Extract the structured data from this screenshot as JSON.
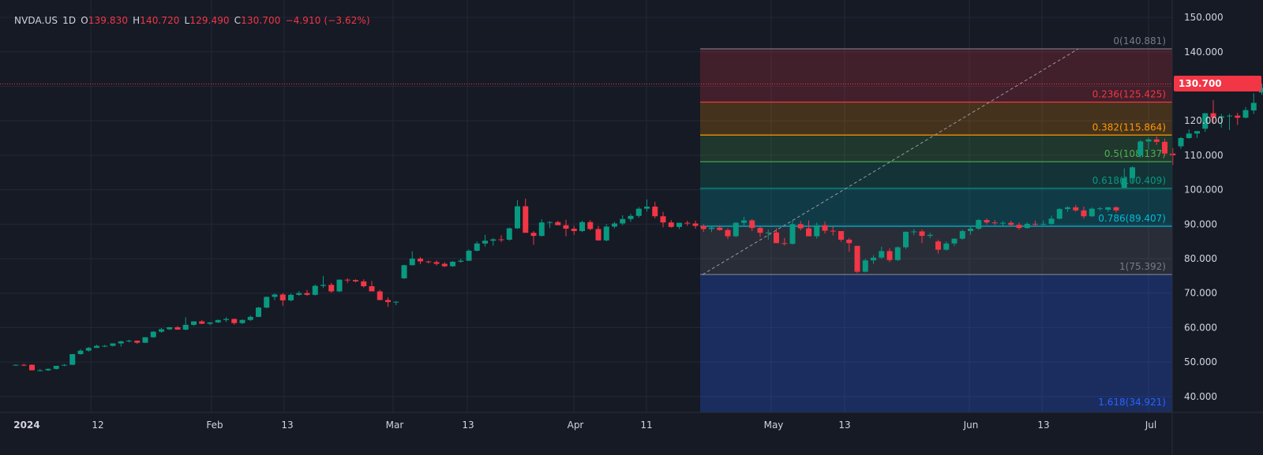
{
  "legend": {
    "symbol": "NVDA.US",
    "interval": "1D",
    "o_label": "O",
    "o": "139.830",
    "h_label": "H",
    "h": "140.720",
    "l_label": "L",
    "l": "129.490",
    "c_label": "C",
    "c": "130.700",
    "change": "−4.910 (−3.62%)"
  },
  "last_price": "130.700",
  "colors": {
    "background": "#161a25",
    "up": "#089981",
    "down": "#f23645",
    "grid": "#232838",
    "text": "#d1d4dc"
  },
  "chart_data": {
    "type": "candlestick",
    "y_axis": {
      "min": 35,
      "max": 150,
      "ticks": [
        "40.000",
        "50.000",
        "60.000",
        "70.000",
        "80.000",
        "90.000",
        "100.000",
        "110.000",
        "120.000",
        "130.000",
        "140.000",
        "150.000"
      ]
    },
    "x_axis_labels": [
      "2024",
      "12",
      "Feb",
      "13",
      "Mar",
      "13",
      "Apr",
      "11",
      "May",
      "13",
      "Jun",
      "13",
      "Jul"
    ],
    "fib_levels": [
      {
        "ratio": "0",
        "value": 140.881,
        "label": "0(140.881)",
        "color": "#787b86",
        "fill": "#f2364533"
      },
      {
        "ratio": "0.236",
        "value": 125.425,
        "label": "0.236(125.425)",
        "color": "#f23645",
        "fill": "#ff980033"
      },
      {
        "ratio": "0.382",
        "value": 115.864,
        "label": "0.382(115.864)",
        "color": "#ff9800",
        "fill": "#4caf5033"
      },
      {
        "ratio": "0.5",
        "value": 108.137,
        "label": "0.5(108.137)",
        "color": "#4caf50",
        "fill": "#08998133"
      },
      {
        "ratio": "0.618",
        "value": 100.409,
        "label": "0.618(100.409)",
        "color": "#089981",
        "fill": "#00bcd433"
      },
      {
        "ratio": "0.786",
        "value": 89.407,
        "label": "0.786(89.407)",
        "color": "#00bcd4",
        "fill": "#787b8633"
      },
      {
        "ratio": "1",
        "value": 75.392,
        "label": "1(75.392)",
        "color": "#787b86",
        "fill": "#2962ff44"
      },
      {
        "ratio": "1.618",
        "value": 34.921,
        "label": "1.618(34.921)",
        "color": "#2962ff",
        "fill": ""
      }
    ],
    "candles": [
      [
        49.2,
        49.3,
        48.9,
        49.2
      ],
      [
        49.2,
        49.5,
        48.8,
        49.1
      ],
      [
        49.2,
        49.3,
        47.8,
        47.6
      ],
      [
        47.6,
        48.0,
        47.3,
        47.6
      ],
      [
        47.6,
        48.2,
        47.4,
        48.0
      ],
      [
        48.0,
        48.9,
        47.8,
        48.9
      ],
      [
        49.0,
        49.4,
        48.8,
        49.2
      ],
      [
        49.2,
        52.3,
        49.1,
        52.3
      ],
      [
        52.3,
        53.7,
        52.1,
        53.3
      ],
      [
        53.3,
        54.4,
        53.0,
        54.1
      ],
      [
        54.1,
        55.0,
        54.1,
        54.7
      ],
      [
        54.7,
        55.0,
        54.3,
        54.7
      ],
      [
        54.7,
        55.4,
        54.5,
        55.4
      ],
      [
        55.4,
        56.2,
        54.5,
        56.0
      ],
      [
        56.0,
        56.5,
        55.7,
        56.2
      ],
      [
        56.2,
        56.3,
        55.3,
        55.6
      ],
      [
        55.6,
        57.1,
        55.5,
        57.2
      ],
      [
        57.2,
        59.0,
        57.0,
        58.8
      ],
      [
        58.8,
        59.9,
        58.5,
        59.5
      ],
      [
        59.5,
        60.2,
        59.3,
        60.1
      ],
      [
        60.1,
        60.5,
        59.4,
        59.4
      ],
      [
        59.4,
        63.0,
        59.2,
        60.8
      ],
      [
        60.8,
        61.8,
        60.5,
        61.8
      ],
      [
        61.8,
        62.2,
        61.0,
        61.1
      ],
      [
        61.1,
        61.6,
        60.7,
        61.5
      ],
      [
        61.5,
        62.3,
        61.3,
        62.2
      ],
      [
        62.2,
        63.0,
        61.6,
        62.5
      ],
      [
        62.5,
        62.6,
        60.8,
        61.3
      ],
      [
        61.3,
        62.4,
        61.0,
        62.2
      ],
      [
        62.2,
        63.5,
        61.9,
        63.1
      ],
      [
        63.1,
        66.0,
        63.0,
        65.8
      ],
      [
        65.8,
        69.0,
        65.6,
        68.9
      ],
      [
        68.9,
        69.9,
        68.0,
        69.6
      ],
      [
        69.6,
        70.0,
        66.3,
        67.9
      ],
      [
        67.9,
        69.9,
        67.6,
        69.5
      ],
      [
        69.5,
        70.6,
        69.2,
        70.0
      ],
      [
        70.0,
        70.9,
        69.2,
        69.5
      ],
      [
        69.5,
        72.5,
        69.3,
        72.1
      ],
      [
        72.1,
        75.0,
        71.5,
        72.4
      ],
      [
        72.4,
        73.0,
        70.1,
        70.5
      ],
      [
        70.5,
        74.0,
        70.3,
        73.9
      ],
      [
        73.9,
        74.3,
        73.0,
        73.8
      ],
      [
        73.8,
        74.0,
        73.1,
        73.4
      ],
      [
        73.4,
        74.0,
        71.6,
        72.0
      ],
      [
        72.0,
        73.5,
        71.5,
        70.5
      ],
      [
        70.5,
        71.0,
        67.9,
        68.0
      ],
      [
        68.0,
        68.8,
        66.0,
        67.4
      ],
      [
        67.4,
        67.7,
        66.5,
        67.5
      ],
      [
        74.3,
        78.2,
        74.1,
        78.1
      ],
      [
        78.1,
        82.1,
        78.0,
        80.0
      ],
      [
        80.0,
        80.5,
        78.4,
        79.2
      ],
      [
        79.2,
        79.4,
        78.6,
        79.0
      ],
      [
        79.0,
        79.5,
        78.0,
        78.5
      ],
      [
        78.5,
        79.0,
        77.5,
        77.8
      ],
      [
        77.8,
        79.3,
        77.6,
        79.1
      ],
      [
        79.1,
        80.0,
        78.8,
        79.4
      ],
      [
        79.4,
        82.7,
        79.3,
        82.3
      ],
      [
        82.3,
        85.0,
        82.1,
        84.4
      ],
      [
        84.4,
        86.9,
        83.5,
        85.2
      ],
      [
        85.2,
        86.0,
        83.8,
        85.6
      ],
      [
        85.6,
        86.8,
        84.8,
        85.5
      ],
      [
        85.5,
        89.0,
        85.2,
        88.8
      ],
      [
        88.8,
        97.0,
        88.6,
        95.2
      ],
      [
        95.2,
        97.4,
        87.5,
        87.5
      ],
      [
        87.5,
        88.0,
        84.0,
        86.6
      ],
      [
        86.6,
        91.4,
        86.4,
        90.5
      ],
      [
        90.5,
        90.9,
        88.9,
        90.6
      ],
      [
        90.6,
        91.0,
        89.8,
        89.7
      ],
      [
        89.7,
        91.3,
        86.5,
        88.7
      ],
      [
        88.7,
        89.5,
        86.9,
        88.0
      ],
      [
        88.0,
        91.0,
        87.7,
        90.6
      ],
      [
        90.6,
        91.2,
        88.2,
        88.6
      ],
      [
        88.6,
        89.5,
        85.2,
        85.3
      ],
      [
        85.3,
        90.0,
        85.0,
        89.3
      ],
      [
        89.3,
        90.7,
        88.8,
        90.2
      ],
      [
        90.2,
        92.6,
        89.7,
        91.5
      ],
      [
        91.5,
        93.0,
        90.7,
        92.4
      ],
      [
        92.4,
        95.0,
        91.9,
        94.5
      ],
      [
        94.5,
        97.2,
        93.7,
        95.1
      ],
      [
        95.1,
        96.5,
        91.7,
        92.3
      ],
      [
        92.3,
        93.6,
        89.1,
        90.5
      ],
      [
        90.5,
        91.2,
        89.0,
        89.2
      ],
      [
        89.2,
        90.2,
        88.6,
        90.4
      ],
      [
        90.4,
        91.0,
        89.5,
        90.2
      ],
      [
        90.2,
        91.0,
        88.7,
        89.5
      ],
      [
        89.5,
        90.0,
        87.8,
        88.6
      ],
      [
        88.6,
        89.6,
        87.7,
        89.0
      ],
      [
        89.0,
        89.7,
        88.1,
        88.3
      ],
      [
        88.3,
        88.8,
        85.7,
        86.5
      ],
      [
        86.5,
        90.6,
        86.2,
        90.4
      ],
      [
        90.4,
        92.1,
        89.4,
        91.1
      ],
      [
        91.1,
        91.5,
        88.0,
        88.9
      ],
      [
        88.9,
        89.2,
        86.3,
        87.5
      ],
      [
        87.5,
        88.5,
        85.5,
        87.6
      ],
      [
        87.6,
        88.8,
        84.8,
        84.5
      ],
      [
        84.5,
        86.0,
        83.8,
        84.3
      ],
      [
        84.3,
        91.0,
        84.1,
        90.0
      ],
      [
        90.0,
        90.9,
        88.2,
        88.8
      ],
      [
        88.8,
        91.1,
        86.5,
        86.5
      ],
      [
        86.5,
        90.5,
        85.8,
        89.7
      ],
      [
        89.7,
        90.8,
        87.3,
        88.1
      ],
      [
        88.1,
        89.3,
        86.7,
        88.0
      ],
      [
        88.0,
        88.0,
        84.9,
        85.5
      ],
      [
        85.5,
        86.0,
        82.0,
        84.5
      ],
      [
        83.7,
        83.8,
        75.8,
        76.2
      ],
      [
        76.2,
        80.0,
        76.0,
        79.5
      ],
      [
        79.5,
        81.0,
        78.5,
        80.3
      ],
      [
        80.3,
        83.5,
        79.9,
        82.2
      ],
      [
        82.2,
        83.0,
        79.0,
        79.6
      ],
      [
        79.6,
        83.5,
        79.3,
        83.3
      ],
      [
        83.3,
        87.9,
        82.8,
        87.8
      ],
      [
        87.8,
        88.6,
        86.8,
        87.9
      ],
      [
        87.9,
        88.4,
        84.5,
        86.6
      ],
      [
        86.6,
        87.5,
        85.9,
        86.9
      ],
      [
        85.0,
        85.5,
        81.5,
        82.6
      ],
      [
        82.6,
        85.0,
        82.3,
        84.4
      ],
      [
        84.4,
        85.9,
        83.6,
        85.8
      ],
      [
        85.8,
        88.4,
        85.5,
        88.0
      ],
      [
        88.0,
        89.5,
        86.9,
        88.7
      ],
      [
        88.7,
        91.5,
        88.3,
        91.2
      ],
      [
        91.2,
        91.7,
        89.9,
        90.5
      ],
      [
        90.5,
        91.2,
        89.7,
        90.3
      ],
      [
        90.3,
        90.9,
        89.5,
        90.4
      ],
      [
        90.4,
        91.0,
        89.4,
        89.8
      ],
      [
        89.8,
        90.5,
        88.4,
        88.9
      ],
      [
        88.9,
        90.5,
        88.7,
        90.1
      ],
      [
        90.1,
        91.0,
        89.5,
        90.0
      ],
      [
        90.0,
        91.1,
        89.6,
        90.1
      ],
      [
        90.1,
        92.5,
        89.8,
        91.6
      ],
      [
        91.6,
        94.7,
        91.4,
        94.4
      ],
      [
        94.4,
        95.2,
        93.6,
        94.9
      ],
      [
        94.9,
        95.6,
        93.6,
        94.0
      ],
      [
        94.0,
        95.1,
        91.6,
        92.3
      ],
      [
        92.3,
        94.9,
        92.1,
        94.5
      ],
      [
        94.5,
        95.0,
        93.9,
        94.6
      ],
      [
        94.2,
        95.0,
        93.5,
        94.9
      ],
      [
        94.9,
        95.2,
        93.4,
        94.0
      ],
      [
        100.6,
        106.2,
        100.5,
        103.4
      ],
      [
        103.4,
        106.8,
        102.1,
        106.5
      ],
      [
        109.9,
        114.4,
        109.3,
        114.0
      ],
      [
        114.0,
        115.1,
        111.6,
        114.6
      ],
      [
        114.6,
        115.5,
        113.0,
        113.9
      ],
      [
        113.9,
        114.8,
        109.9,
        110.5
      ],
      [
        110.5,
        112.1,
        107.2,
        110.0
      ],
      [
        112.6,
        115.3,
        111.9,
        115.0
      ],
      [
        115.0,
        117.5,
        114.8,
        116.3
      ],
      [
        116.3,
        117.0,
        115.0,
        117.0
      ],
      [
        117.7,
        122.2,
        116.8,
        122.2
      ],
      [
        122.2,
        126.0,
        119.0,
        120.9
      ],
      [
        120.9,
        122.0,
        118.0,
        121.3
      ],
      [
        121.3,
        122.0,
        117.3,
        121.5
      ],
      [
        121.5,
        122.3,
        118.8,
        120.9
      ],
      [
        120.9,
        124.0,
        120.7,
        123.1
      ],
      [
        123.0,
        128.0,
        122.0,
        125.2
      ],
      [
        128.2,
        130.8,
        127.5,
        129.6
      ],
      [
        129.6,
        131.6,
        128.8,
        131.9
      ],
      [
        131.9,
        132.4,
        129.9,
        130.0
      ],
      [
        130.0,
        135.6,
        128.9,
        135.6
      ],
      [
        139.8,
        140.7,
        129.5,
        130.7
      ]
    ]
  }
}
